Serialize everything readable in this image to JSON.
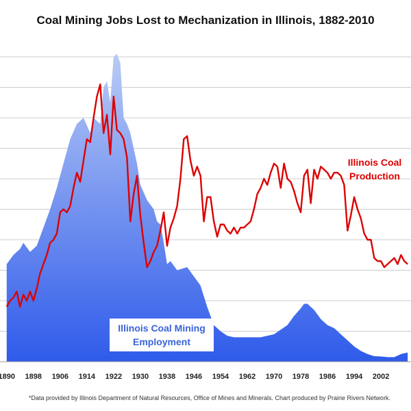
{
  "chart_data": {
    "type": "area",
    "title": "Coal Mining Jobs Lost to Mechanization in Illinois, 1882-2010",
    "xlabel": "",
    "ylabel": "",
    "xlim": [
      1890,
      2010
    ],
    "ylim": [
      0,
      10
    ],
    "x_tick_labels": [
      "1890",
      "1898",
      "1906",
      "1914",
      "1922",
      "1930",
      "1938",
      "1946",
      "1954",
      "1962",
      "1970",
      "1978",
      "1986",
      "1994",
      "2002"
    ],
    "grid": true,
    "legend": "none",
    "note": "*Data provided by Illinois Department of Natural Resources, Office of Mines and Minerals. Chart produced by Prairie Rivers Network.",
    "series": [
      {
        "name": "Illinois Coal Mining Employment",
        "type": "area",
        "color_top": "#b9cbf5",
        "color_bottom": "#2f5bea",
        "label_color": "#3a63d9",
        "x": [
          1890,
          1892,
          1894,
          1895,
          1897,
          1899,
          1901,
          1903,
          1905,
          1907,
          1909,
          1911,
          1913,
          1915,
          1916,
          1918,
          1919,
          1920,
          1921,
          1922,
          1923,
          1924,
          1925,
          1926,
          1927,
          1928,
          1929,
          1930,
          1932,
          1934,
          1935,
          1936,
          1937,
          1938,
          1939,
          1941,
          1944,
          1946,
          1948,
          1950,
          1952,
          1954,
          1956,
          1958,
          1962,
          1966,
          1970,
          1974,
          1976,
          1978,
          1979,
          1980,
          1982,
          1984,
          1986,
          1988,
          1990,
          1992,
          1994,
          1996,
          1998,
          2000,
          2002,
          2004,
          2006,
          2008,
          2010
        ],
        "values": [
          3.2,
          3.5,
          3.7,
          3.9,
          3.6,
          3.8,
          4.4,
          5.0,
          5.7,
          6.5,
          7.3,
          7.8,
          8.0,
          7.5,
          8.0,
          7.8,
          9.0,
          9.2,
          8.5,
          10.0,
          10.1,
          9.8,
          8.0,
          7.8,
          7.5,
          7.0,
          6.5,
          5.8,
          5.3,
          5.0,
          4.6,
          4.5,
          3.9,
          3.2,
          3.3,
          3.0,
          3.1,
          2.8,
          2.5,
          1.8,
          1.2,
          1.0,
          0.85,
          0.8,
          0.8,
          0.8,
          0.9,
          1.2,
          1.5,
          1.75,
          1.9,
          1.9,
          1.7,
          1.4,
          1.2,
          1.1,
          0.9,
          0.7,
          0.5,
          0.35,
          0.25,
          0.18,
          0.17,
          0.15,
          0.15,
          0.25,
          0.3
        ]
      },
      {
        "name": "Illinois Coal Production",
        "type": "line",
        "color": "#dd0000",
        "x": [
          1890,
          1891,
          1892,
          1893,
          1894,
          1895,
          1896,
          1897,
          1898,
          1899,
          1900,
          1901,
          1902,
          1903,
          1904,
          1905,
          1906,
          1907,
          1908,
          1909,
          1910,
          1911,
          1912,
          1913,
          1914,
          1915,
          1916,
          1917,
          1918,
          1919,
          1920,
          1921,
          1922,
          1923,
          1924,
          1925,
          1926,
          1927,
          1928,
          1929,
          1930,
          1931,
          1932,
          1933,
          1934,
          1935,
          1936,
          1937,
          1938,
          1939,
          1940,
          1941,
          1942,
          1943,
          1944,
          1945,
          1946,
          1947,
          1948,
          1949,
          1950,
          1951,
          1952,
          1953,
          1954,
          1955,
          1956,
          1957,
          1958,
          1959,
          1960,
          1961,
          1962,
          1963,
          1964,
          1965,
          1966,
          1967,
          1968,
          1969,
          1970,
          1971,
          1972,
          1973,
          1974,
          1975,
          1976,
          1977,
          1978,
          1979,
          1980,
          1981,
          1982,
          1983,
          1984,
          1985,
          1986,
          1987,
          1988,
          1989,
          1990,
          1991,
          1992,
          1993,
          1994,
          1995,
          1996,
          1997,
          1998,
          1999,
          2000,
          2001,
          2002,
          2003,
          2004,
          2005,
          2006,
          2007,
          2008,
          2009,
          2010
        ],
        "values": [
          1.8,
          2.0,
          2.1,
          2.3,
          1.8,
          2.2,
          2.0,
          2.3,
          2.0,
          2.4,
          2.9,
          3.2,
          3.5,
          3.9,
          4.0,
          4.2,
          4.9,
          5.0,
          4.9,
          5.1,
          5.7,
          6.2,
          5.9,
          6.6,
          7.3,
          7.2,
          8.0,
          8.7,
          9.1,
          7.5,
          8.1,
          6.8,
          8.7,
          7.6,
          7.5,
          7.3,
          6.7,
          4.6,
          5.5,
          6.1,
          4.8,
          3.9,
          3.1,
          3.3,
          3.6,
          3.8,
          4.3,
          4.9,
          3.8,
          4.4,
          4.7,
          5.1,
          6.0,
          7.3,
          7.4,
          6.6,
          6.1,
          6.4,
          6.1,
          4.6,
          5.4,
          5.4,
          4.6,
          4.1,
          4.5,
          4.5,
          4.3,
          4.2,
          4.4,
          4.2,
          4.4,
          4.4,
          4.5,
          4.6,
          5.0,
          5.5,
          5.7,
          6.0,
          5.8,
          6.2,
          6.5,
          6.4,
          5.7,
          6.5,
          6.0,
          5.9,
          5.6,
          5.2,
          4.9,
          6.1,
          6.3,
          5.2,
          6.3,
          6.0,
          6.4,
          6.3,
          6.2,
          6.0,
          6.2,
          6.2,
          6.1,
          5.8,
          4.3,
          4.8,
          5.4,
          5.0,
          4.7,
          4.2,
          4.0,
          4.0,
          3.4,
          3.3,
          3.3,
          3.1,
          3.2,
          3.3,
          3.4,
          3.2,
          3.5,
          3.3,
          3.2
        ]
      }
    ]
  }
}
